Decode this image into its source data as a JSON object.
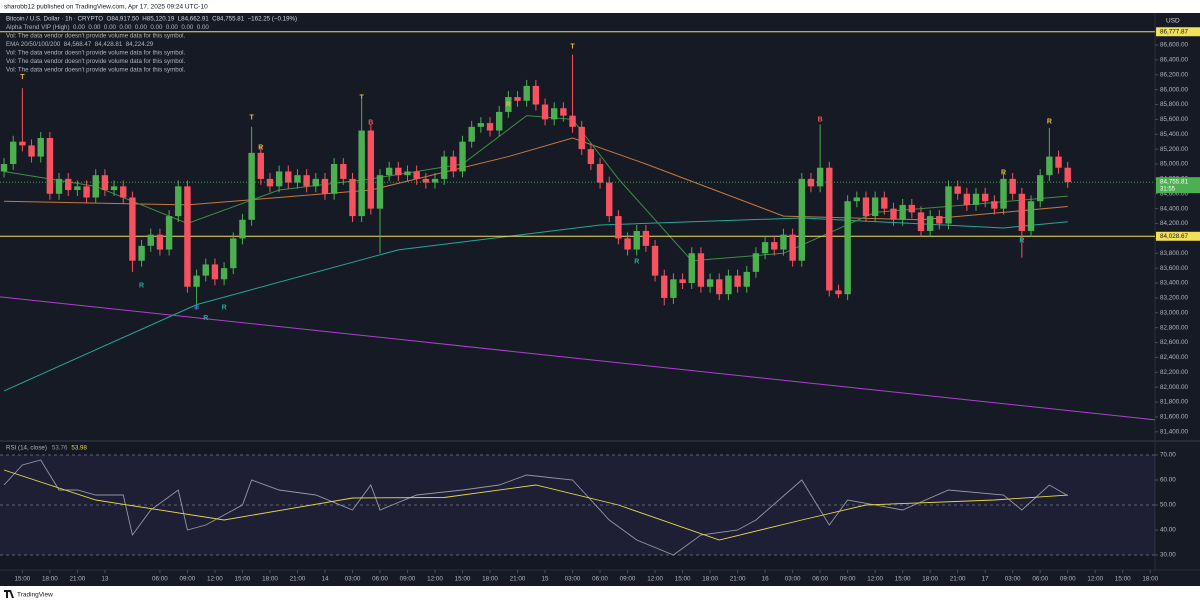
{
  "header": {
    "published": "sharobb12 published on TradingView.com, Apr 17, 2025 09:24 UTC-10",
    "currency": "USD",
    "footer": "TradingView"
  },
  "chart_data": [
    {
      "type": "candlestick",
      "legend": [
        "Bitcoin / U.S. Dollar · 1h · CRYPTO  O84,917.50  H85,120.19  L84,662.91  C84,755.81  −162.25 (−0.19%)",
        "Alpha Trend VIP (High)  0.00  0.00  0.00  0.00  0.00  0.00  0.00  0.00  0.00",
        "Vol: The data vendor doesn't provide volume data for this symbol.",
        "EMA 20/50/100/200  84,568.47  84,428.81  84,224.29",
        "Vol: The data vendor doesn't provide volume data for this symbol.",
        "Vol: The data vendor doesn't provide volume data for this symbol.",
        "Vol: The data vendor doesn't provide volume data for this symbol."
      ],
      "up_color": "#4caf50",
      "down_color": "#f7525f",
      "open": [
        84900,
        85000,
        85300,
        85250,
        85100,
        85350,
        84600,
        84800,
        84650,
        84700,
        84550,
        84850,
        84650,
        84700,
        84550,
        83700,
        83900,
        84050,
        83850,
        84300,
        84700,
        83350,
        83500,
        83650,
        83450,
        83600,
        84000,
        84250,
        85150,
        84800,
        84700,
        84900,
        84750,
        84850,
        84700,
        84800,
        84600,
        85000,
        84800,
        84300,
        85450,
        84400,
        84850,
        84950,
        84850,
        84900,
        84800,
        84750,
        84800,
        85100,
        84900,
        85300,
        85500,
        85550,
        85450,
        85700,
        85900,
        85850,
        86050,
        85800,
        85600,
        85750,
        85650,
        85500,
        85200,
        85000,
        84750,
        84300,
        84000,
        83850,
        84100,
        83900,
        83500,
        83200,
        83450,
        83400,
        83800,
        83350,
        83450,
        83250,
        83500,
        83350,
        83550,
        83800,
        83950,
        83850,
        84050,
        83700,
        84800,
        84700,
        84950,
        83300,
        83250,
        84500,
        84550,
        84300,
        84550,
        84400,
        84250,
        84450,
        84350,
        84100,
        84300,
        84200,
        84700,
        84600,
        84450,
        84600,
        84500,
        84400,
        84800,
        84600,
        84100,
        84500,
        84850,
        85100,
        84950
      ],
      "high": [
        85080,
        85380,
        86020,
        85330,
        85430,
        85430,
        84880,
        84880,
        84780,
        84780,
        84930,
        84930,
        84780,
        84780,
        84630,
        83980,
        84130,
        84130,
        84380,
        84780,
        84780,
        83580,
        83730,
        83730,
        83680,
        84080,
        84330,
        85500,
        85230,
        84880,
        84980,
        84980,
        84930,
        84930,
        84880,
        84880,
        85080,
        85080,
        84880,
        85860,
        85530,
        84930,
        85030,
        85030,
        84980,
        84980,
        84880,
        84880,
        85180,
        85180,
        85380,
        85580,
        85630,
        85630,
        85780,
        85980,
        85980,
        86130,
        86130,
        85880,
        85830,
        85830,
        86470,
        85580,
        85280,
        85080,
        84830,
        84380,
        84080,
        84180,
        84180,
        83980,
        83580,
        83530,
        83530,
        83880,
        83880,
        83530,
        83530,
        83580,
        83580,
        83630,
        83880,
        84030,
        84030,
        84130,
        84130,
        84880,
        84880,
        85530,
        85030,
        83380,
        84580,
        84630,
        84630,
        84630,
        84630,
        84480,
        84530,
        84530,
        84430,
        84380,
        84380,
        84780,
        84780,
        84680,
        84680,
        84680,
        84580,
        84880,
        84880,
        84680,
        84580,
        84930,
        85485,
        85180,
        85030
      ],
      "low": [
        84820,
        84920,
        85170,
        85020,
        85020,
        84520,
        84520,
        84570,
        84570,
        84470,
        84470,
        84570,
        84570,
        84470,
        83550,
        83620,
        83820,
        83770,
        83770,
        84220,
        83270,
        83050,
        83420,
        83370,
        83370,
        83520,
        83920,
        84170,
        84720,
        84620,
        84620,
        84670,
        84670,
        84620,
        84620,
        84520,
        84520,
        84720,
        84220,
        84220,
        84320,
        83800,
        84770,
        84770,
        84770,
        84720,
        84670,
        84670,
        84720,
        84820,
        84820,
        85220,
        85420,
        85370,
        85370,
        85620,
        85770,
        85770,
        85720,
        85520,
        85520,
        85570,
        85420,
        85120,
        84920,
        84670,
        84220,
        83920,
        83770,
        83770,
        83820,
        83420,
        83100,
        83120,
        83320,
        83320,
        83270,
        83270,
        83170,
        83170,
        83270,
        83270,
        83470,
        83720,
        83770,
        83770,
        83620,
        83620,
        84620,
        84620,
        83220,
        83200,
        83170,
        84420,
        84220,
        84220,
        84320,
        84170,
        84170,
        84270,
        84020,
        84020,
        84120,
        84120,
        84520,
        84370,
        84370,
        84420,
        84320,
        84320,
        84520,
        83740,
        84020,
        84420,
        84770,
        84870,
        84680
      ],
      "close": [
        85000,
        85300,
        85250,
        85100,
        85350,
        84600,
        84800,
        84650,
        84700,
        84550,
        84850,
        84650,
        84700,
        84550,
        83700,
        83900,
        84050,
        83850,
        84300,
        84700,
        83350,
        83500,
        83650,
        83450,
        83600,
        84000,
        84250,
        85150,
        84800,
        84700,
        84900,
        84750,
        84850,
        84700,
        84800,
        84600,
        85000,
        84800,
        84300,
        85450,
        84400,
        84850,
        84950,
        84850,
        84900,
        84800,
        84750,
        84800,
        85100,
        84900,
        85300,
        85500,
        85550,
        85450,
        85700,
        85900,
        85850,
        86050,
        85800,
        85600,
        85750,
        85650,
        85500,
        85200,
        85000,
        84750,
        84300,
        84000,
        83850,
        84100,
        83900,
        83500,
        83200,
        83450,
        83400,
        83800,
        83350,
        83450,
        83250,
        83500,
        83350,
        83550,
        83800,
        83950,
        83850,
        84050,
        83700,
        84800,
        84700,
        84950,
        83300,
        83250,
        84500,
        84550,
        84300,
        84550,
        84400,
        84250,
        84450,
        84350,
        84100,
        84300,
        84200,
        84700,
        84600,
        84450,
        84600,
        84500,
        84400,
        84800,
        84600,
        84100,
        84500,
        84850,
        85100,
        84950,
        84755.81
      ],
      "lines": [
        {
          "color": "#26a69a",
          "x": [
            0,
            21,
            43,
            65,
            87,
            109,
            116
          ],
          "values": [
            81950,
            83110,
            83846,
            84180,
            84275,
            84140,
            84224.29
          ]
        },
        {
          "color": "#c8783c",
          "x": [
            0,
            20,
            40,
            55,
            62,
            70,
            85,
            100,
            116
          ],
          "values": [
            84500,
            84450,
            84650,
            85100,
            85350,
            85000,
            84300,
            84250,
            84428.81
          ]
        },
        {
          "color": "#3f8f45",
          "x": [
            0,
            10,
            20,
            30,
            40,
            50,
            57,
            62,
            67,
            75,
            85,
            95,
            105,
            116
          ],
          "values": [
            84900,
            84700,
            84200,
            84650,
            84800,
            85000,
            85650,
            85600,
            84800,
            83700,
            83800,
            84350,
            84450,
            84568.47
          ]
        },
        {
          "color": "#b03fd0",
          "x": [
            -0.44,
            125.52
          ],
          "values": [
            83214,
            81561
          ]
        }
      ],
      "levels": [
        {
          "value": 86777.87,
          "label": "86,777.87",
          "color": "#f0e05a"
        },
        {
          "value": 84028.67,
          "label": "84,028.67",
          "color": "#f0e05a"
        }
      ],
      "last_price": {
        "value": 84755.81,
        "label": "84,755.81",
        "countdown": "31:55",
        "color": "#4caf50"
      },
      "markers": [
        {
          "text": "T",
          "x": 2,
          "price": 86170,
          "color": "#e8b93c"
        },
        {
          "text": "T",
          "x": 27,
          "price": 85620,
          "color": "#e8b93c"
        },
        {
          "text": "T",
          "x": 39,
          "price": 85890,
          "color": "#e8b93c"
        },
        {
          "text": "T",
          "x": 62,
          "price": 86575,
          "color": "#e8b93c"
        },
        {
          "text": "R",
          "x": 28,
          "price": 85217,
          "color": "#e8b93c"
        },
        {
          "text": "R",
          "x": 55,
          "price": 85800,
          "color": "#e8b93c"
        },
        {
          "text": "R",
          "x": 109,
          "price": 84881,
          "color": "#e8b93c"
        },
        {
          "text": "R",
          "x": 114,
          "price": 85567,
          "color": "#e8b93c"
        },
        {
          "text": "B",
          "x": 40,
          "price": 85553,
          "color": "#f7525f"
        },
        {
          "text": "B",
          "x": 89,
          "price": 85594,
          "color": "#f7525f"
        },
        {
          "text": "B",
          "x": 21,
          "price": 83070,
          "color": "#2962ff"
        },
        {
          "text": "R",
          "x": 15,
          "price": 83362,
          "color": "#26a69a"
        },
        {
          "text": "R",
          "x": 22,
          "price": 82930,
          "color": "#26a69a"
        },
        {
          "text": "R",
          "x": 24,
          "price": 83070,
          "color": "#26a69a"
        },
        {
          "text": "R",
          "x": 69,
          "price": 83685,
          "color": "#26a69a"
        },
        {
          "text": "R",
          "x": 111,
          "price": 83970,
          "color": "#26a69a"
        }
      ],
      "xlim": [
        -0.44,
        125.52
      ],
      "xticks": [
        {
          "value": 2,
          "label": "15:00"
        },
        {
          "value": 5,
          "label": "18:00"
        },
        {
          "value": 8,
          "label": "21:00"
        },
        {
          "value": 11,
          "label": "13"
        },
        {
          "value": 17,
          "label": "06:00"
        },
        {
          "value": 20,
          "label": "09:00"
        },
        {
          "value": 23,
          "label": "12:00"
        },
        {
          "value": 26,
          "label": "15:00"
        },
        {
          "value": 29,
          "label": "18:00"
        },
        {
          "value": 32,
          "label": "21:00"
        },
        {
          "value": 35,
          "label": "14"
        },
        {
          "value": 38,
          "label": "03:00"
        },
        {
          "value": 41,
          "label": "06:00"
        },
        {
          "value": 44,
          "label": "09:00"
        },
        {
          "value": 47,
          "label": "12:00"
        },
        {
          "value": 50,
          "label": "15:00"
        },
        {
          "value": 53,
          "label": "18:00"
        },
        {
          "value": 56,
          "label": "21:00"
        },
        {
          "value": 59,
          "label": "15"
        },
        {
          "value": 62,
          "label": "03:00"
        },
        {
          "value": 65,
          "label": "06:00"
        },
        {
          "value": 68,
          "label": "09:00"
        },
        {
          "value": 71,
          "label": "12:00"
        },
        {
          "value": 74,
          "label": "15:00"
        },
        {
          "value": 77,
          "label": "18:00"
        },
        {
          "value": 80,
          "label": "21:00"
        },
        {
          "value": 83,
          "label": "16"
        },
        {
          "value": 86,
          "label": "03:00"
        },
        {
          "value": 89,
          "label": "06:00"
        },
        {
          "value": 92,
          "label": "09:00"
        },
        {
          "value": 95,
          "label": "12:00"
        },
        {
          "value": 98,
          "label": "15:00"
        },
        {
          "value": 101,
          "label": "18:00"
        },
        {
          "value": 104,
          "label": "21:00"
        },
        {
          "value": 107,
          "label": "17"
        },
        {
          "value": 110,
          "label": "03:00"
        },
        {
          "value": 113,
          "label": "06:00"
        },
        {
          "value": 116,
          "label": "09:00"
        },
        {
          "value": 119,
          "label": "12:00"
        },
        {
          "value": 122,
          "label": "15:00"
        },
        {
          "value": 125,
          "label": "18:00"
        }
      ],
      "ylim": [
        81290,
        87030
      ],
      "yticks": [
        {
          "value": 81400,
          "label": "81,400.00"
        },
        {
          "value": 81600,
          "label": "81,600.00"
        },
        {
          "value": 81800,
          "label": "81,800.00"
        },
        {
          "value": 82000,
          "label": "82,000.00"
        },
        {
          "value": 82200,
          "label": "82,200.00"
        },
        {
          "value": 82400,
          "label": "82,400.00"
        },
        {
          "value": 82600,
          "label": "82,600.00"
        },
        {
          "value": 82800,
          "label": "82,800.00"
        },
        {
          "value": 83000,
          "label": "83,000.00"
        },
        {
          "value": 83200,
          "label": "83,200.00"
        },
        {
          "value": 83400,
          "label": "83,400.00"
        },
        {
          "value": 83600,
          "label": "83,600.00"
        },
        {
          "value": 83800,
          "label": "83,800.00"
        },
        {
          "value": 84000,
          "label": "84,000.00"
        },
        {
          "value": 84200,
          "label": "84,200.00"
        },
        {
          "value": 84400,
          "label": "84,400.00"
        },
        {
          "value": 84600,
          "label": "84,600.00"
        },
        {
          "value": 84800,
          "label": "84,800.00"
        },
        {
          "value": 85000,
          "label": "85,000.00"
        },
        {
          "value": 85200,
          "label": "85,200.00"
        },
        {
          "value": 85400,
          "label": "85,400.00"
        },
        {
          "value": 85600,
          "label": "85,600.00"
        },
        {
          "value": 85800,
          "label": "85,800.00"
        },
        {
          "value": 86000,
          "label": "86,000.00"
        },
        {
          "value": 86200,
          "label": "86,200.00"
        },
        {
          "value": 86400,
          "label": "86,400.00"
        },
        {
          "value": 86600,
          "label": "86,600.00"
        }
      ]
    },
    {
      "type": "line",
      "title": "RSI (14, close)",
      "legend_values": [
        53.76,
        53.98
      ],
      "band_color": "#7e57c2",
      "series": [
        {
          "color": "#9598a1",
          "x": [
            0,
            2,
            4,
            6,
            8,
            10,
            13,
            14,
            16,
            19,
            20,
            22,
            26,
            27,
            30,
            34,
            38,
            40,
            41,
            45,
            50,
            54,
            57,
            62,
            64,
            66,
            69,
            73,
            76,
            80,
            82,
            87,
            90,
            92,
            98,
            103,
            109,
            111,
            114,
            116
          ],
          "values": [
            58,
            66,
            68,
            56,
            56,
            54,
            54,
            38,
            48,
            56,
            40,
            42,
            50,
            60,
            56,
            54,
            48,
            58,
            48,
            54,
            56,
            58,
            62,
            60,
            52,
            44,
            36,
            30,
            38,
            40,
            44,
            60,
            42,
            52,
            48,
            56,
            54,
            48,
            58,
            53.76
          ]
        },
        {
          "color": "#e6d84a",
          "x": [
            0,
            10,
            24,
            38,
            48,
            58,
            67,
            78,
            87,
            94,
            108,
            116
          ],
          "values": [
            64,
            52,
            44,
            52.8,
            53,
            58,
            50,
            36,
            44,
            50,
            52,
            53.98
          ]
        }
      ],
      "ylim": [
        24,
        75.6
      ],
      "yticks": [
        {
          "value": 70,
          "label": "70.00"
        },
        {
          "value": 60,
          "label": "60.00"
        },
        {
          "value": 50,
          "label": "50.00"
        },
        {
          "value": 40,
          "label": "40.00"
        },
        {
          "value": 30,
          "label": "30.00"
        }
      ]
    }
  ]
}
